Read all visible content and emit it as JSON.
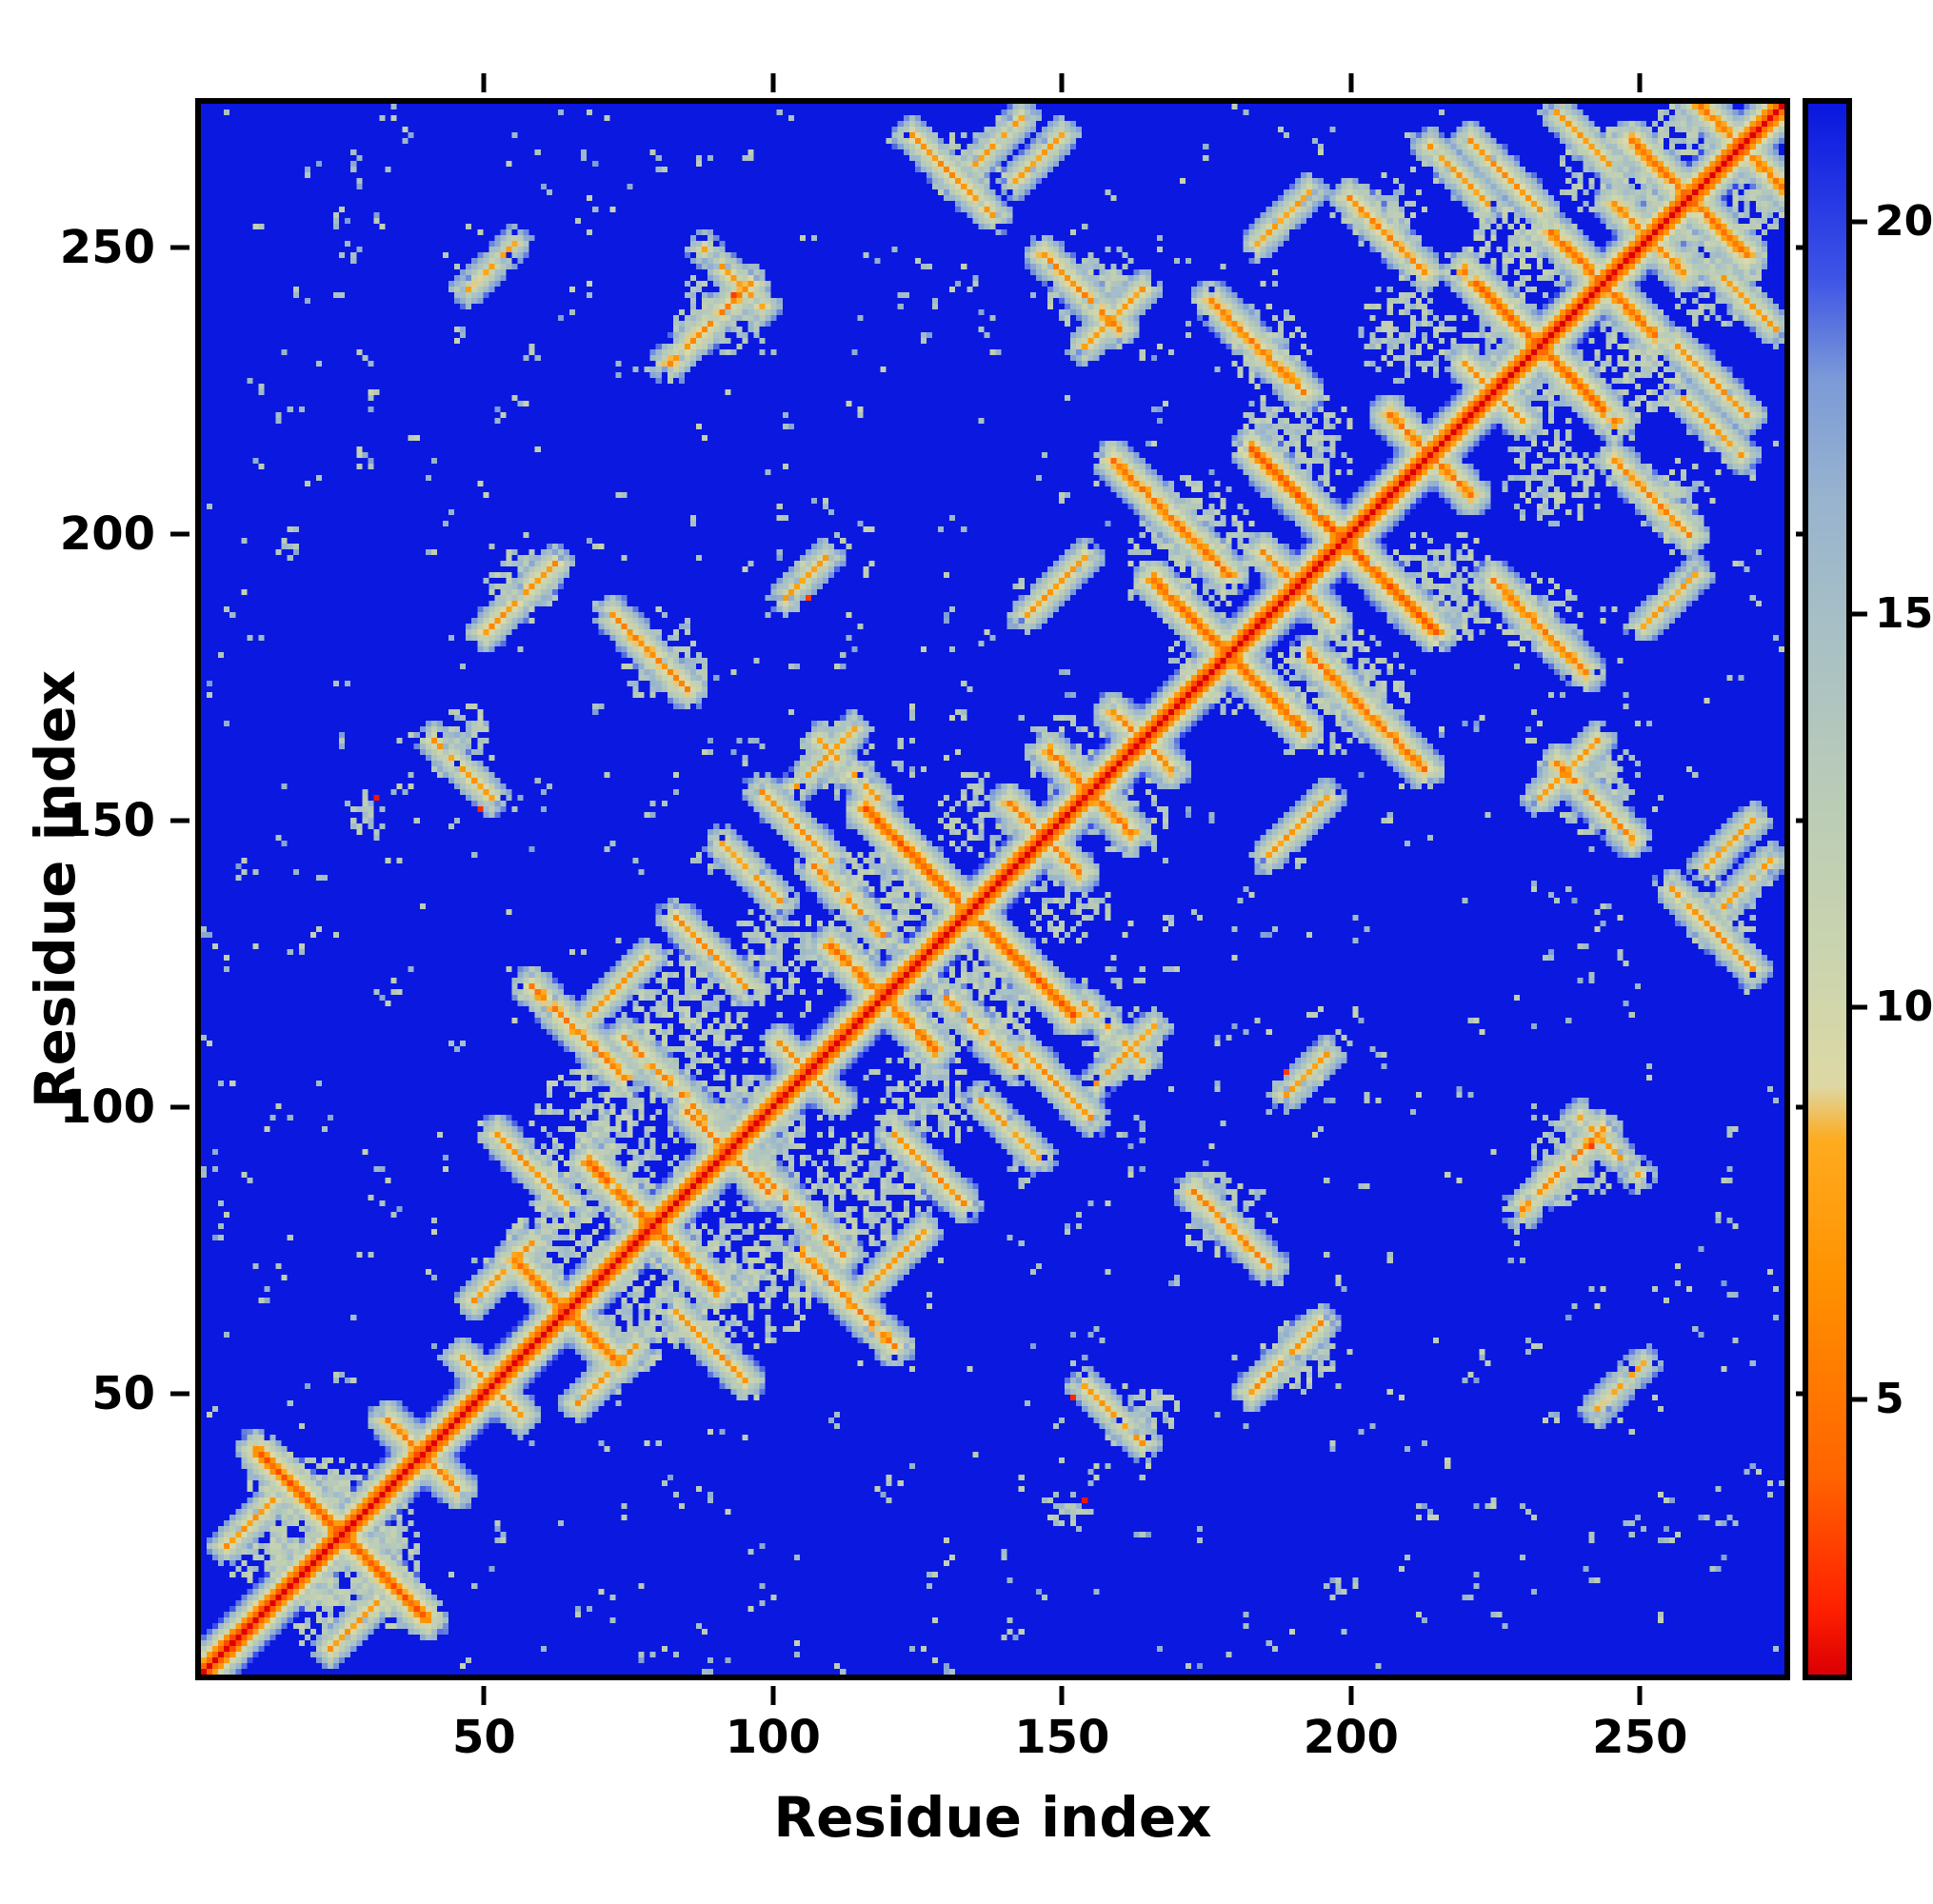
{
  "figure": {
    "xlabel": "Residue index",
    "ylabel": "Residue index"
  },
  "axes": {
    "x_ticks": [
      50,
      100,
      150,
      200,
      250
    ],
    "y_ticks": [
      50,
      100,
      150,
      200,
      250
    ],
    "x_range": [
      1,
      275
    ],
    "y_range": [
      1,
      275
    ]
  },
  "colorbar": {
    "ticks": [
      5,
      10,
      15,
      20
    ],
    "vmin": 1.5,
    "vmax": 21.5
  },
  "chart_data": {
    "type": "heatmap",
    "title": "",
    "xlabel": "Residue index",
    "ylabel": "Residue index",
    "x_range": [
      1,
      275
    ],
    "y_range": [
      1,
      275
    ],
    "value_range": [
      1.5,
      21.5
    ],
    "colorbar_ticks": [
      5,
      10,
      15,
      20
    ],
    "legend_position": "right-colorbar",
    "grid": false,
    "description": "Symmetric residue-residue distance map (approx. 275 x 275). Red main diagonal (shortest distances), orange near-diagonal contacts, pale green/grey medium distances, vivid blue background for large distances (clipped near 21.5).",
    "colors": {
      "background_blue": "#0b18e0",
      "diagonal_red": "#dc0005",
      "contact_orange": "#ff9200",
      "medium_sage": "#ccd5ae",
      "medium_bluegrey": "#abc2c4",
      "axis_black": "#000000"
    },
    "colormap": [
      [
        1.5,
        "#dc0005"
      ],
      [
        2.3,
        "#ff2000"
      ],
      [
        4.0,
        "#ff6400"
      ],
      [
        6.5,
        "#ff9200"
      ],
      [
        8.3,
        "#ffac20"
      ],
      [
        9.0,
        "#ded9a6"
      ],
      [
        10.5,
        "#ccd5ae"
      ],
      [
        12.5,
        "#bccdb6"
      ],
      [
        14.5,
        "#abc2c4"
      ],
      [
        16.5,
        "#98b4cf"
      ],
      [
        18.0,
        "#7d9bd8"
      ],
      [
        19.3,
        "#3f55e6"
      ],
      [
        21.5,
        "#0b18e0"
      ]
    ],
    "synthesis": {
      "n": 275,
      "seed": 42,
      "base": 21.5,
      "diag_slope": 3.0,
      "speckle": 700,
      "hairpins": [
        [
          24,
          28,
          4
        ],
        [
          38,
          12,
          6
        ],
        [
          50,
          10,
          6.5
        ],
        [
          63,
          18,
          5
        ],
        [
          78,
          22,
          4.5
        ],
        [
          91,
          14,
          6
        ],
        [
          105,
          10,
          6.5
        ],
        [
          118,
          18,
          5
        ],
        [
          133,
          36,
          4
        ],
        [
          146,
          12,
          6
        ],
        [
          154,
          14,
          5.5
        ],
        [
          163,
          10,
          6
        ],
        [
          178,
          26,
          4.5
        ],
        [
          190,
          12,
          6
        ],
        [
          198,
          32,
          4
        ],
        [
          213,
          14,
          5.5
        ],
        [
          224,
          10,
          6.5
        ],
        [
          232,
          26,
          4.5
        ],
        [
          243,
          18,
          5
        ],
        [
          251,
          12,
          6
        ],
        [
          258,
          20,
          5
        ],
        [
          267,
          14,
          5.5
        ]
      ],
      "stripes": [
        [
          8,
          26,
          1,
          8,
          7
        ],
        [
          14,
          34,
          -1,
          10,
          6.5
        ],
        [
          52,
          70,
          1,
          10,
          7
        ],
        [
          57,
          88,
          -1,
          12,
          6.5
        ],
        [
          65,
          112,
          -1,
          16,
          5.5
        ],
        [
          72,
          120,
          1,
          10,
          7
        ],
        [
          80,
          104,
          -1,
          14,
          6
        ],
        [
          88,
          126,
          -1,
          12,
          6.5
        ],
        [
          95,
          140,
          -1,
          10,
          7
        ],
        [
          103,
          148,
          -1,
          12,
          6.5
        ],
        [
          108,
          160,
          1,
          10,
          7.5
        ],
        [
          112,
          135,
          -1,
          12,
          6
        ],
        [
          130,
          262,
          -1,
          14,
          6.5
        ],
        [
          138,
          268,
          1,
          8,
          7.5
        ],
        [
          148,
          190,
          1,
          10,
          7
        ],
        [
          152,
          242,
          -1,
          14,
          6
        ],
        [
          158,
          237,
          1,
          10,
          7
        ],
        [
          168,
          202,
          -1,
          20,
          5
        ],
        [
          183,
          232,
          -1,
          16,
          5.5
        ],
        [
          188,
          255,
          1,
          10,
          7.5
        ],
        [
          205,
          252,
          -1,
          14,
          6
        ],
        [
          218,
          262,
          -1,
          10,
          7
        ],
        [
          226,
          262,
          -1,
          12,
          6.5
        ],
        [
          240,
          268,
          -1,
          10,
          7
        ],
        [
          55,
          188,
          1,
          12,
          6.5
        ],
        [
          78,
          178,
          -1,
          14,
          6
        ],
        [
          88,
          236,
          1,
          14,
          6
        ],
        [
          92,
          244,
          -1,
          10,
          7
        ],
        [
          45,
          158,
          -1,
          10,
          7
        ],
        [
          105,
          192,
          1,
          8,
          7.5
        ],
        [
          112,
          158,
          -1,
          10,
          7
        ],
        [
          145,
          265,
          1,
          8,
          7.5
        ],
        [
          50,
          246,
          1,
          8,
          8
        ]
      ],
      "blobs": [
        [
          22,
          22,
          16,
          16,
          12
        ],
        [
          12,
          34,
          6,
          5,
          12.5
        ],
        [
          60,
          75,
          8,
          8,
          12.5
        ],
        [
          70,
          90,
          14,
          18,
          12
        ],
        [
          85,
          115,
          12,
          14,
          12
        ],
        [
          100,
          125,
          10,
          10,
          12.5
        ],
        [
          120,
          135,
          12,
          12,
          12
        ],
        [
          135,
          150,
          8,
          8,
          12.5
        ],
        [
          95,
          95,
          10,
          10,
          12.5
        ],
        [
          150,
          160,
          8,
          8,
          12.5
        ],
        [
          172,
          198,
          12,
          12,
          12
        ],
        [
          175,
          180,
          8,
          8,
          12.5
        ],
        [
          190,
          215,
          10,
          12,
          12.5
        ],
        [
          210,
          235,
          10,
          10,
          12.5
        ],
        [
          225,
          232,
          8,
          8,
          12.5
        ],
        [
          228,
          248,
          10,
          10,
          12
        ],
        [
          245,
          262,
          10,
          9,
          12
        ],
        [
          250,
          256,
          7,
          7,
          12.5
        ],
        [
          258,
          270,
          7,
          5,
          12.5
        ],
        [
          90,
          238,
          9,
          8,
          12.5
        ],
        [
          80,
          176,
          8,
          7,
          12.5
        ],
        [
          55,
          190,
          7,
          7,
          12.5
        ],
        [
          110,
          160,
          7,
          7,
          13
        ],
        [
          155,
          242,
          9,
          8,
          12.5
        ],
        [
          185,
          232,
          8,
          8,
          12.5
        ],
        [
          132,
          264,
          9,
          7,
          12.5
        ],
        [
          45,
          162,
          6,
          8,
          13
        ],
        [
          205,
          255,
          8,
          7,
          12.5
        ],
        [
          28,
          150,
          4,
          5,
          13
        ]
      ],
      "dots": [
        [
          30,
          153,
          2
        ],
        [
          105,
          188,
          3
        ],
        [
          92,
          241,
          3
        ],
        [
          48,
          151,
          2.5
        ]
      ]
    }
  }
}
